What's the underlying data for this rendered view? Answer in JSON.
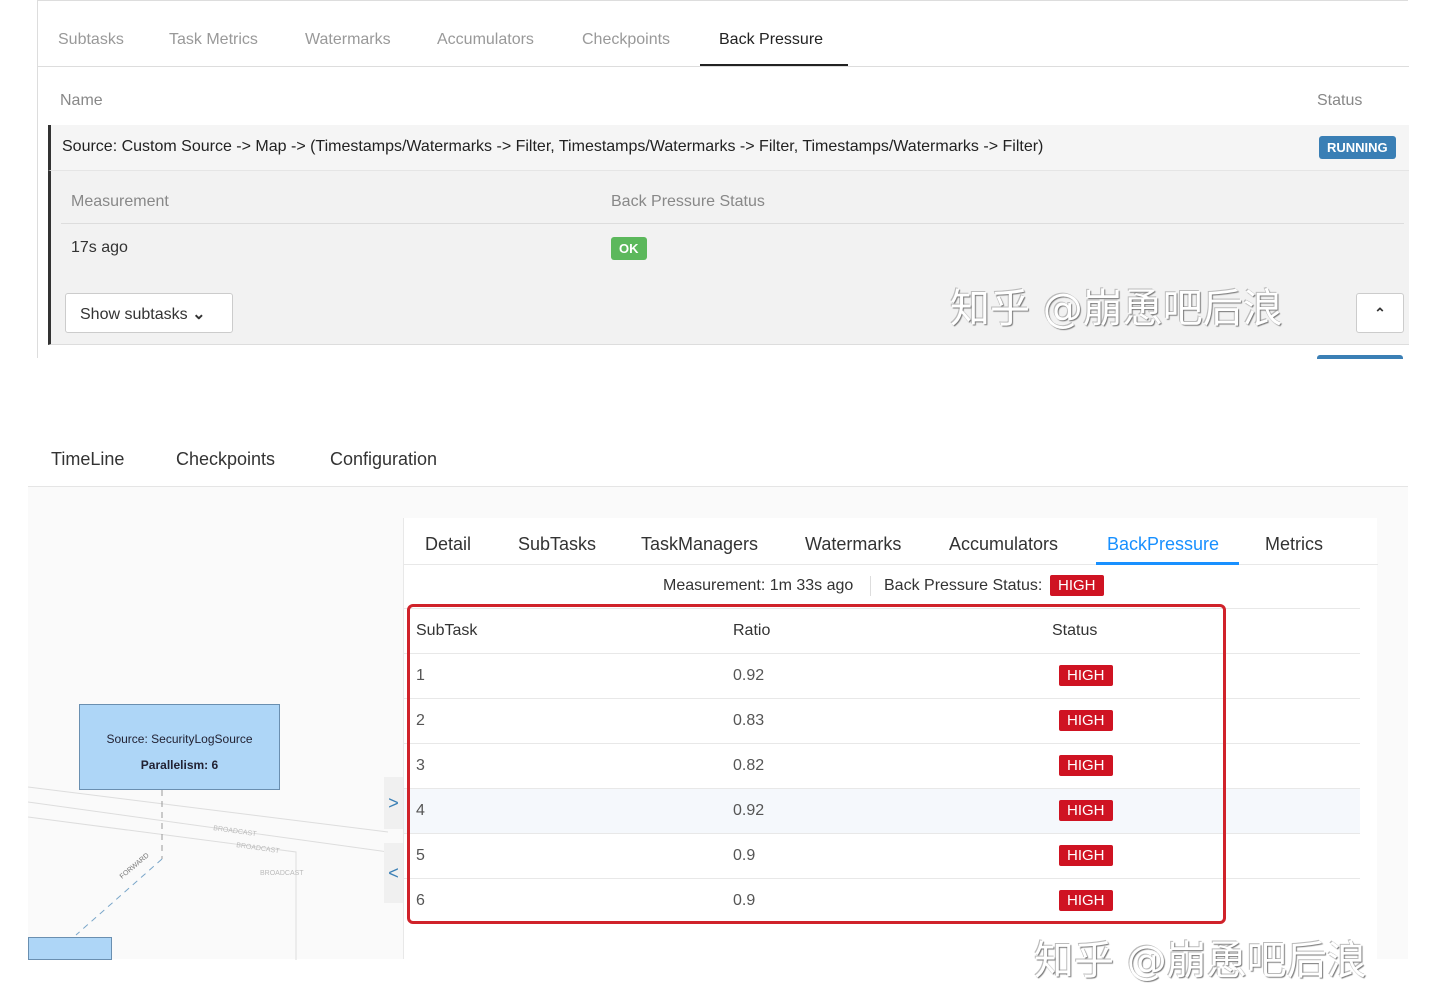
{
  "top": {
    "tabs": [
      "Subtasks",
      "Task Metrics",
      "Watermarks",
      "Accumulators",
      "Checkpoints",
      "Back Pressure"
    ],
    "active_tab": "Back Pressure",
    "headers": {
      "name": "Name",
      "status": "Status"
    },
    "job": {
      "name": "Source: Custom Source -> Map -> (Timestamps/Watermarks -> Filter, Timestamps/Watermarks -> Filter, Timestamps/Watermarks -> Filter)",
      "status": "RUNNING",
      "status_color": "#3a7fb5"
    },
    "sub_headers": {
      "measurement": "Measurement",
      "status": "Back Pressure Status"
    },
    "measurement": "17s ago",
    "bp_status": "OK",
    "bp_color": "#5cb85c",
    "show_subtasks": "Show subtasks",
    "watermark": "知乎 @崩恿吧后浪"
  },
  "bottom": {
    "tabs": [
      "TimeLine",
      "Checkpoints",
      "Configuration"
    ],
    "graph": {
      "node_title": "Source: SecurityLogSource",
      "node_parallelism": "Parallelism: 6",
      "edge_labels": [
        "BROADCAST",
        "BROADCAST",
        "BROADCAST",
        "FORWARD"
      ]
    },
    "panel_tabs": [
      "Detail",
      "SubTasks",
      "TaskManagers",
      "Watermarks",
      "Accumulators",
      "BackPressure",
      "Metrics"
    ],
    "active_panel_tab": "BackPressure",
    "measurement": "Measurement: 1m 33s ago",
    "status_label": "Back Pressure Status:",
    "status": "HIGH",
    "columns": [
      "SubTask",
      "Ratio",
      "Status"
    ],
    "rows": [
      {
        "subtask": "1",
        "ratio": "0.92",
        "status": "HIGH"
      },
      {
        "subtask": "2",
        "ratio": "0.83",
        "status": "HIGH"
      },
      {
        "subtask": "3",
        "ratio": "0.82",
        "status": "HIGH"
      },
      {
        "subtask": "4",
        "ratio": "0.92",
        "status": "HIGH"
      },
      {
        "subtask": "5",
        "ratio": "0.9",
        "status": "HIGH"
      },
      {
        "subtask": "6",
        "ratio": "0.9",
        "status": "HIGH"
      }
    ],
    "high_color": "#cf1322",
    "watermark": "知乎 @崩恿吧后浪"
  }
}
